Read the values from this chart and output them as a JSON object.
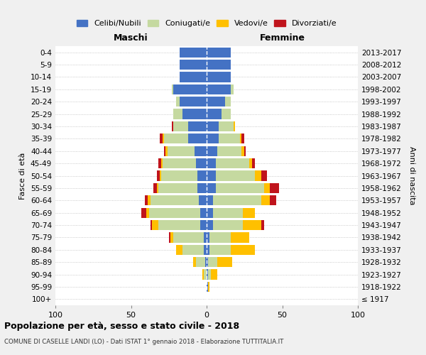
{
  "age_groups": [
    "100+",
    "95-99",
    "90-94",
    "85-89",
    "80-84",
    "75-79",
    "70-74",
    "65-69",
    "60-64",
    "55-59",
    "50-54",
    "45-49",
    "40-44",
    "35-39",
    "30-34",
    "25-29",
    "20-24",
    "15-19",
    "10-14",
    "5-9",
    "0-4"
  ],
  "birth_years": [
    "≤ 1917",
    "1918-1922",
    "1923-1927",
    "1928-1932",
    "1933-1937",
    "1938-1942",
    "1943-1947",
    "1948-1952",
    "1953-1957",
    "1958-1962",
    "1963-1967",
    "1968-1972",
    "1973-1977",
    "1978-1982",
    "1983-1987",
    "1988-1992",
    "1993-1997",
    "1998-2002",
    "2003-2007",
    "2008-2012",
    "2013-2017"
  ],
  "male": {
    "celibe": [
      0,
      0,
      0,
      1,
      2,
      2,
      4,
      4,
      5,
      6,
      6,
      7,
      8,
      12,
      12,
      16,
      18,
      22,
      18,
      18,
      18
    ],
    "coniugato": [
      0,
      0,
      2,
      6,
      14,
      20,
      28,
      34,
      32,
      26,
      24,
      22,
      18,
      16,
      10,
      6,
      2,
      1,
      0,
      0,
      0
    ],
    "vedovo": [
      0,
      0,
      1,
      2,
      4,
      2,
      4,
      2,
      2,
      1,
      1,
      1,
      1,
      1,
      0,
      0,
      0,
      0,
      0,
      0,
      0
    ],
    "divorziato": [
      0,
      0,
      0,
      0,
      0,
      1,
      1,
      3,
      2,
      2,
      2,
      2,
      1,
      2,
      1,
      0,
      0,
      0,
      0,
      0,
      0
    ]
  },
  "female": {
    "nubile": [
      0,
      1,
      1,
      1,
      2,
      2,
      4,
      4,
      4,
      6,
      6,
      6,
      7,
      8,
      8,
      10,
      12,
      16,
      16,
      16,
      16
    ],
    "coniugata": [
      0,
      0,
      2,
      6,
      14,
      14,
      20,
      20,
      32,
      32,
      26,
      22,
      16,
      14,
      10,
      6,
      4,
      2,
      0,
      0,
      0
    ],
    "vedova": [
      0,
      1,
      4,
      10,
      16,
      12,
      12,
      8,
      6,
      4,
      4,
      2,
      2,
      1,
      1,
      0,
      0,
      0,
      0,
      0,
      0
    ],
    "divorziata": [
      0,
      0,
      0,
      0,
      0,
      0,
      2,
      0,
      4,
      6,
      4,
      2,
      1,
      2,
      0,
      0,
      0,
      0,
      0,
      0,
      0
    ]
  },
  "color_celibe": "#4472c4",
  "color_coniugato": "#c5d9a0",
  "color_vedovo": "#ffc000",
  "color_divorziato": "#c0141c",
  "bg_color": "#f0f0f0",
  "plot_bg": "#ffffff",
  "title": "Popolazione per età, sesso e stato civile - 2018",
  "subtitle": "COMUNE DI CASELLE LANDI (LO) - Dati ISTAT 1° gennaio 2018 - Elaborazione TUTTITALIA.IT",
  "xlabel_left": "Maschi",
  "xlabel_right": "Femmine",
  "ylabel_left": "Fasce di età",
  "ylabel_right": "Anni di nascita",
  "xlim": 100
}
